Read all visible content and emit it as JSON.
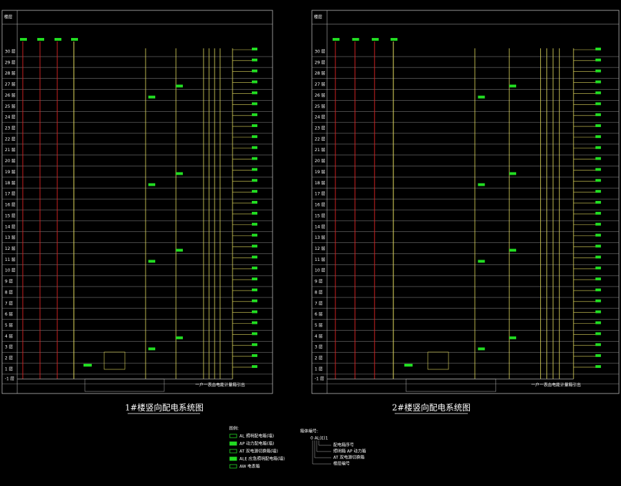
{
  "floors": [
    "30 层",
    "29 层",
    "28 层",
    "27 层",
    "26 层",
    "25 层",
    "24 层",
    "23 层",
    "22 层",
    "21 层",
    "20 层",
    "19 层",
    "18 层",
    "17 层",
    "16 层",
    "15 层",
    "14 层",
    "13 层",
    "12 层",
    "11 层",
    "10 层",
    "9 层",
    "8 层",
    "7 层",
    "6 层",
    "5 层",
    "4 层",
    "3 层",
    "2 层",
    "1 层",
    "-1 层"
  ],
  "panels": [
    {
      "title": "1#楼竖向配电系统图",
      "corner": "楼层",
      "note": "一户一表由电能计量箱引出"
    },
    {
      "title": "2#楼竖向配电系统图",
      "corner": "楼层",
      "note": "一户一表由电能计量箱引出"
    }
  ],
  "legend": {
    "title": "图例:",
    "items": [
      "AL 照明配电箱(墙)",
      "AP 动力配电箱(墙)",
      "AT 双电源切换箱(墙)",
      "ALE 应急照明配电箱(墙)",
      "AW 电表箱"
    ]
  },
  "notes": {
    "title": "箱体编号:",
    "code": "0 AL(E)1",
    "items": [
      "配电箱序号",
      "照明箱 AP 动力箱",
      "AT 双电源切换箱",
      "楼层编号"
    ]
  }
}
